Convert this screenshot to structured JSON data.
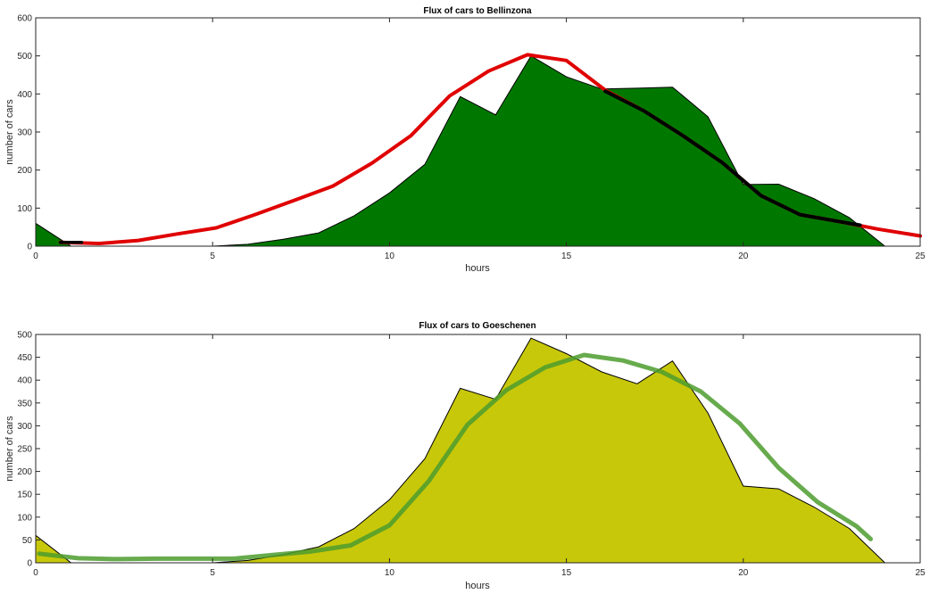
{
  "chart_data": [
    {
      "type": "area",
      "title": "Flux of cars to Bellinzona",
      "xlabel": "hours",
      "ylabel": "number of cars",
      "xlim": [
        0,
        25
      ],
      "ylim": [
        0,
        600
      ],
      "xticks": [
        0,
        5,
        10,
        15,
        20,
        25
      ],
      "yticks": [
        0,
        100,
        200,
        300,
        400,
        500,
        600
      ],
      "grid": false,
      "series": [
        {
          "kind": "area",
          "color": "#007800",
          "x": [
            0,
            1,
            2,
            3,
            4,
            5,
            6,
            7,
            8,
            9,
            10,
            11,
            12,
            13,
            14,
            15,
            16,
            17,
            18,
            19,
            20,
            21,
            22,
            23,
            24
          ],
          "y": [
            60,
            0,
            0,
            0,
            0,
            0,
            5,
            18,
            35,
            80,
            140,
            215,
            393,
            345,
            500,
            445,
            413,
            415,
            418,
            340,
            162,
            163,
            125,
            75,
            0
          ]
        },
        {
          "kind": "line",
          "color": "#e00000",
          "x": [
            0.7,
            1.8,
            2.9,
            4,
            5.1,
            6.2,
            7.3,
            8.4,
            9.5,
            10.6,
            11.7,
            12.8,
            13.9,
            15,
            16.1,
            17.2,
            18.3,
            19.4,
            20.5,
            21.6,
            22.7,
            23.8,
            25
          ],
          "y": [
            10,
            7,
            15,
            32,
            48,
            83,
            120,
            158,
            218,
            290,
            395,
            460,
            503,
            488,
            410,
            355,
            290,
            220,
            133,
            83,
            65,
            45,
            27
          ]
        },
        {
          "kind": "line",
          "color": "#000000",
          "x": [
            0.7,
            1.3,
            16.1,
            17.2,
            18.3,
            19.4,
            20.5,
            21.6,
            22.7,
            23.3
          ],
          "y": [
            10,
            10,
            407,
            355,
            290,
            220,
            133,
            83,
            65,
            55
          ]
        }
      ]
    },
    {
      "type": "area",
      "title": "Flux of cars to Goeschenen",
      "xlabel": "hours",
      "ylabel": "number of cars",
      "xlim": [
        0,
        25
      ],
      "ylim": [
        0,
        500
      ],
      "xticks": [
        0,
        5,
        10,
        15,
        20,
        25
      ],
      "yticks": [
        0,
        50,
        100,
        150,
        200,
        250,
        300,
        350,
        400,
        450,
        500
      ],
      "grid": false,
      "series": [
        {
          "kind": "area",
          "color": "#c8c80a",
          "x": [
            0,
            1,
            2,
            3,
            4,
            5,
            6,
            7,
            8,
            9,
            10,
            11,
            12,
            13,
            14,
            15,
            16,
            17,
            18,
            19,
            20,
            21,
            22,
            23,
            24
          ],
          "y": [
            60,
            0,
            0,
            0,
            0,
            0,
            5,
            18,
            35,
            75,
            138,
            228,
            382,
            358,
            492,
            458,
            418,
            392,
            442,
            328,
            168,
            162,
            122,
            75,
            0
          ]
        },
        {
          "kind": "line",
          "color": "#4c9c2e",
          "x": [
            0.1,
            1.2,
            2.3,
            3.4,
            4.5,
            5.6,
            6.7,
            7.8,
            8.9,
            10,
            11.1,
            12.2,
            13.3,
            14.4,
            15.5,
            16.6,
            17.7,
            18.8,
            19.9,
            21,
            22.1,
            23.2,
            23.6
          ],
          "y": [
            20,
            10,
            8,
            9,
            9,
            9,
            17,
            25,
            38,
            82,
            178,
            302,
            378,
            428,
            455,
            443,
            418,
            375,
            305,
            208,
            133,
            80,
            52
          ]
        }
      ]
    }
  ]
}
